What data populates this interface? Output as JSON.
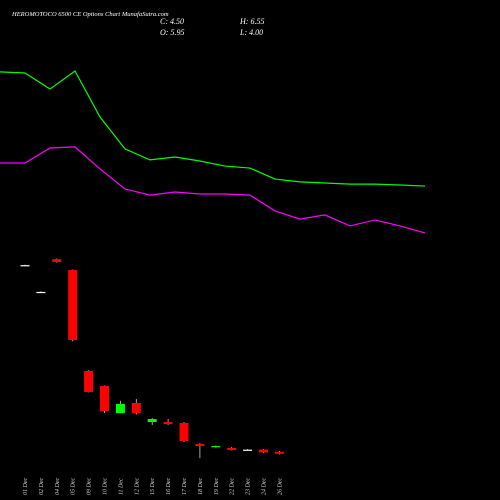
{
  "header": {
    "title": "HEROMOTOCO 6500 CE Options Chart MunafaSutra.com",
    "close": "C: 4.50",
    "open": "O: 5.95",
    "high": "H: 6.55",
    "low": "L: 4.00"
  },
  "chart_data": [
    {
      "type": "line",
      "categories": [
        null,
        null,
        null,
        null,
        null,
        null,
        null,
        null,
        null,
        null,
        null,
        null,
        null,
        null,
        null,
        null,
        null,
        null
      ],
      "series": [
        {
          "color": "#00ff00",
          "values": [
            85.5,
            85,
            77.7,
            85.9,
            65,
            50.5,
            45.5,
            46.8,
            45,
            42.7,
            41.8,
            36.8,
            35.5,
            35,
            34.5,
            34.5,
            34.1,
            33.6
          ]
        },
        {
          "color": "#ff00ff",
          "values": [
            44.1,
            44.1,
            50.9,
            51.4,
            41.4,
            32.3,
            29.5,
            30.9,
            30,
            30,
            29.5,
            22.3,
            18.6,
            20.5,
            15.5,
            18.2,
            15.5,
            12.3
          ]
        }
      ],
      "ylim": [
        0,
        100
      ]
    },
    {
      "type": "candlestick",
      "categories": [
        "01 Dec",
        "02 Dec",
        "04 Dec",
        "05 Dec",
        "09 Dec",
        "10 Dec",
        "11 Dec",
        "12 Dec",
        "15 Dec",
        "16 Dec",
        "17 Dec",
        "18 Dec",
        "19 Dec",
        "22 Dec",
        "23 Dec",
        "24 Dec",
        "26 Dec"
      ],
      "open": [
        141.2,
        121.8,
        145.5,
        137.7,
        64.5,
        53.6,
        34,
        41.3,
        27.5,
        27.5,
        26.8,
        11.6,
        9.4,
        8.7,
        7.5,
        7.6,
        5.95
      ],
      "high": [
        141.6,
        122.2,
        146,
        138,
        65,
        54,
        42.8,
        44.2,
        30.4,
        29.7,
        27.5,
        12.3,
        10.5,
        9.4,
        8,
        8,
        6.55
      ],
      "low": [
        140.8,
        121.4,
        143,
        86,
        49,
        34,
        34,
        33,
        25.4,
        25.4,
        13,
        1.4,
        9,
        6.9,
        7,
        5,
        4.0
      ],
      "close": [
        141.2,
        121.8,
        143.5,
        87,
        49.3,
        35.5,
        40.6,
        34,
        29.7,
        26,
        13.8,
        10.1,
        10.1,
        7.2,
        7.5,
        5.5,
        4.5
      ],
      "up_color": "#00ff00",
      "down_color": "#ff0000",
      "flat_color": "#ffffff",
      "ylim": [
        0,
        150
      ]
    }
  ]
}
